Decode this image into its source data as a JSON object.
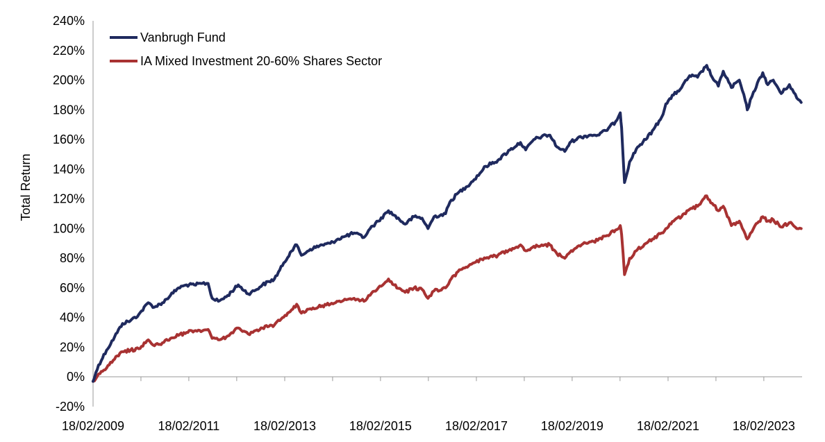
{
  "chart_data": {
    "type": "line",
    "title": "",
    "xlabel": "",
    "ylabel": "Total Return",
    "ylim": [
      -20,
      240
    ],
    "yticks": [
      "240%",
      "220%",
      "200%",
      "180%",
      "160%",
      "140%",
      "120%",
      "100%",
      "80%",
      "60%",
      "40%",
      "20%",
      "0%",
      "-20%"
    ],
    "xtick_labels": [
      "18/02/2009",
      "18/02/2011",
      "18/02/2013",
      "18/02/2015",
      "18/02/2017",
      "18/02/2019",
      "18/02/2021",
      "18/02/2023"
    ],
    "xlim": [
      "2009-02-18",
      "2023-11-30"
    ],
    "legend_position": "top-left",
    "grid": false,
    "series": [
      {
        "name": "Vanbrugh Fund",
        "color": "#1f2a5e",
        "points": [
          [
            "2009-02-18",
            -3
          ],
          [
            "2009-04-01",
            8
          ],
          [
            "2009-06-01",
            18
          ],
          [
            "2009-08-01",
            27
          ],
          [
            "2009-10-01",
            36
          ],
          [
            "2009-12-01",
            38
          ],
          [
            "2010-02-01",
            42
          ],
          [
            "2010-04-15",
            50
          ],
          [
            "2010-06-01",
            47
          ],
          [
            "2010-08-01",
            50
          ],
          [
            "2010-10-01",
            55
          ],
          [
            "2010-12-01",
            60
          ],
          [
            "2011-02-01",
            62
          ],
          [
            "2011-04-01",
            62
          ],
          [
            "2011-06-01",
            63
          ],
          [
            "2011-07-15",
            63
          ],
          [
            "2011-08-15",
            53
          ],
          [
            "2011-10-01",
            51
          ],
          [
            "2011-12-01",
            54
          ],
          [
            "2012-03-01",
            62
          ],
          [
            "2012-05-15",
            56
          ],
          [
            "2012-07-01",
            58
          ],
          [
            "2012-09-01",
            62
          ],
          [
            "2012-12-01",
            66
          ],
          [
            "2013-02-01",
            75
          ],
          [
            "2013-04-01",
            84
          ],
          [
            "2013-05-20",
            89
          ],
          [
            "2013-06-25",
            82
          ],
          [
            "2013-09-01",
            86
          ],
          [
            "2013-12-01",
            89
          ],
          [
            "2014-02-01",
            90
          ],
          [
            "2014-04-01",
            93
          ],
          [
            "2014-06-01",
            95
          ],
          [
            "2014-08-01",
            97
          ],
          [
            "2014-10-15",
            94
          ],
          [
            "2014-12-01",
            100
          ],
          [
            "2015-02-01",
            105
          ],
          [
            "2015-04-20",
            112
          ],
          [
            "2015-06-01",
            109
          ],
          [
            "2015-08-25",
            103
          ],
          [
            "2015-11-01",
            108
          ],
          [
            "2016-01-01",
            107
          ],
          [
            "2016-02-15",
            100
          ],
          [
            "2016-04-01",
            108
          ],
          [
            "2016-06-28",
            110
          ],
          [
            "2016-08-01",
            118
          ],
          [
            "2016-10-01",
            124
          ],
          [
            "2016-12-01",
            128
          ],
          [
            "2017-02-01",
            133
          ],
          [
            "2017-05-01",
            142
          ],
          [
            "2017-08-01",
            146
          ],
          [
            "2017-11-01",
            153
          ],
          [
            "2018-01-20",
            158
          ],
          [
            "2018-03-01",
            153
          ],
          [
            "2018-05-01",
            160
          ],
          [
            "2018-07-01",
            162
          ],
          [
            "2018-09-01",
            163
          ],
          [
            "2018-10-25",
            155
          ],
          [
            "2018-12-24",
            152
          ],
          [
            "2019-02-01",
            158
          ],
          [
            "2019-04-01",
            161
          ],
          [
            "2019-07-01",
            163
          ],
          [
            "2019-09-01",
            163
          ],
          [
            "2019-11-01",
            166
          ],
          [
            "2020-01-15",
            172
          ],
          [
            "2020-02-20",
            178
          ],
          [
            "2020-03-01",
            168
          ],
          [
            "2020-03-23",
            131
          ],
          [
            "2020-05-01",
            145
          ],
          [
            "2020-07-01",
            155
          ],
          [
            "2020-09-01",
            160
          ],
          [
            "2020-11-01",
            167
          ],
          [
            "2020-12-31",
            175
          ],
          [
            "2021-02-01",
            184
          ],
          [
            "2021-04-01",
            190
          ],
          [
            "2021-06-01",
            195
          ],
          [
            "2021-08-01",
            203
          ],
          [
            "2021-10-01",
            202
          ],
          [
            "2021-12-10",
            210
          ],
          [
            "2022-01-20",
            202
          ],
          [
            "2022-03-08",
            196
          ],
          [
            "2022-04-15",
            206
          ],
          [
            "2022-06-16",
            195
          ],
          [
            "2022-08-15",
            200
          ],
          [
            "2022-09-30",
            186
          ],
          [
            "2022-10-15",
            180
          ],
          [
            "2022-12-01",
            192
          ],
          [
            "2023-02-10",
            205
          ],
          [
            "2023-03-20",
            197
          ],
          [
            "2023-05-01",
            200
          ],
          [
            "2023-07-01",
            191
          ],
          [
            "2023-09-01",
            197
          ],
          [
            "2023-10-27",
            188
          ],
          [
            "2023-11-30",
            185
          ]
        ]
      },
      {
        "name": "IA Mixed Investment 20-60% Shares Sector",
        "color": "#a83232",
        "points": [
          [
            "2009-02-18",
            -3
          ],
          [
            "2009-04-01",
            2
          ],
          [
            "2009-06-01",
            6
          ],
          [
            "2009-08-01",
            12
          ],
          [
            "2009-10-01",
            17
          ],
          [
            "2009-12-01",
            18
          ],
          [
            "2010-02-01",
            19
          ],
          [
            "2010-04-15",
            25
          ],
          [
            "2010-06-01",
            21
          ],
          [
            "2010-08-01",
            23
          ],
          [
            "2010-10-01",
            26
          ],
          [
            "2010-12-01",
            28
          ],
          [
            "2011-02-01",
            30
          ],
          [
            "2011-04-01",
            31
          ],
          [
            "2011-06-01",
            31
          ],
          [
            "2011-07-15",
            32
          ],
          [
            "2011-08-15",
            26
          ],
          [
            "2011-10-01",
            25
          ],
          [
            "2011-12-01",
            27
          ],
          [
            "2012-03-01",
            33
          ],
          [
            "2012-05-15",
            29
          ],
          [
            "2012-07-01",
            31
          ],
          [
            "2012-09-01",
            33
          ],
          [
            "2012-12-01",
            35
          ],
          [
            "2013-02-01",
            40
          ],
          [
            "2013-04-01",
            44
          ],
          [
            "2013-05-20",
            49
          ],
          [
            "2013-06-25",
            43
          ],
          [
            "2013-09-01",
            46
          ],
          [
            "2013-12-01",
            48
          ],
          [
            "2014-02-01",
            49
          ],
          [
            "2014-04-01",
            51
          ],
          [
            "2014-06-01",
            52
          ],
          [
            "2014-08-01",
            53
          ],
          [
            "2014-10-15",
            51
          ],
          [
            "2014-12-01",
            55
          ],
          [
            "2015-02-01",
            60
          ],
          [
            "2015-04-20",
            66
          ],
          [
            "2015-06-01",
            62
          ],
          [
            "2015-08-25",
            57
          ],
          [
            "2015-11-01",
            60
          ],
          [
            "2016-01-01",
            59
          ],
          [
            "2016-02-15",
            53
          ],
          [
            "2016-04-01",
            58
          ],
          [
            "2016-06-28",
            60
          ],
          [
            "2016-08-01",
            65
          ],
          [
            "2016-10-01",
            71
          ],
          [
            "2016-12-01",
            74
          ],
          [
            "2017-02-01",
            77
          ],
          [
            "2017-05-01",
            80
          ],
          [
            "2017-08-01",
            82
          ],
          [
            "2017-11-01",
            86
          ],
          [
            "2018-01-20",
            89
          ],
          [
            "2018-03-01",
            85
          ],
          [
            "2018-05-01",
            88
          ],
          [
            "2018-07-01",
            89
          ],
          [
            "2018-09-01",
            89
          ],
          [
            "2018-10-25",
            83
          ],
          [
            "2018-12-24",
            80
          ],
          [
            "2019-02-01",
            84
          ],
          [
            "2019-04-01",
            88
          ],
          [
            "2019-07-01",
            91
          ],
          [
            "2019-09-01",
            92
          ],
          [
            "2019-11-01",
            95
          ],
          [
            "2020-01-15",
            99
          ],
          [
            "2020-02-20",
            102
          ],
          [
            "2020-03-01",
            96
          ],
          [
            "2020-03-23",
            69
          ],
          [
            "2020-05-01",
            80
          ],
          [
            "2020-07-01",
            86
          ],
          [
            "2020-09-01",
            90
          ],
          [
            "2020-11-01",
            93
          ],
          [
            "2020-12-31",
            97
          ],
          [
            "2021-02-01",
            100
          ],
          [
            "2021-04-01",
            105
          ],
          [
            "2021-06-01",
            108
          ],
          [
            "2021-08-01",
            113
          ],
          [
            "2021-10-01",
            115
          ],
          [
            "2021-12-10",
            122
          ],
          [
            "2022-01-20",
            117
          ],
          [
            "2022-03-08",
            112
          ],
          [
            "2022-04-15",
            115
          ],
          [
            "2022-06-16",
            102
          ],
          [
            "2022-08-15",
            105
          ],
          [
            "2022-09-30",
            96
          ],
          [
            "2022-10-15",
            93
          ],
          [
            "2022-12-01",
            100
          ],
          [
            "2023-02-10",
            108
          ],
          [
            "2023-03-20",
            105
          ],
          [
            "2023-05-01",
            106
          ],
          [
            "2023-07-01",
            101
          ],
          [
            "2023-09-01",
            104
          ],
          [
            "2023-10-27",
            100
          ],
          [
            "2023-11-30",
            100
          ]
        ]
      }
    ]
  }
}
